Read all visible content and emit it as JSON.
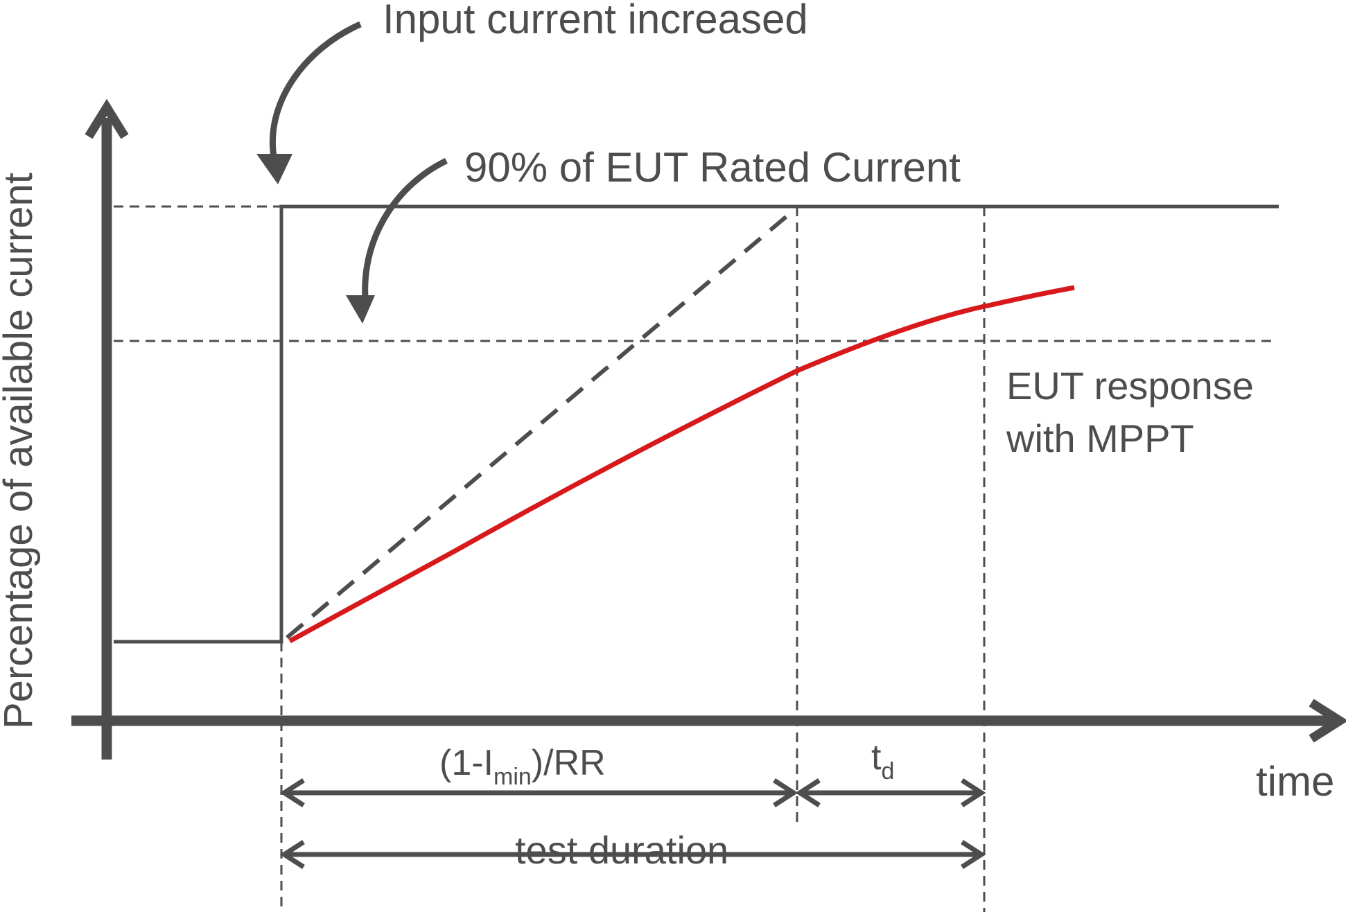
{
  "labels": {
    "input_current_increased": "Input current increased",
    "rated_current_90": "90% of EUT Rated Current",
    "eut_response_line1": "EUT response",
    "eut_response_line2": "with MPPT",
    "y_axis": "Percentage of available current",
    "x_axis": "time",
    "ramp_interval_prefix": "(1-I",
    "ramp_interval_sub": "min",
    "ramp_interval_suffix": ")/RR",
    "delay_main": "t",
    "delay_sub": "d",
    "test_duration": "test duration"
  },
  "colors": {
    "ink": "#4d4d4d",
    "response": "#d7191c",
    "background": "#ffffff"
  }
}
